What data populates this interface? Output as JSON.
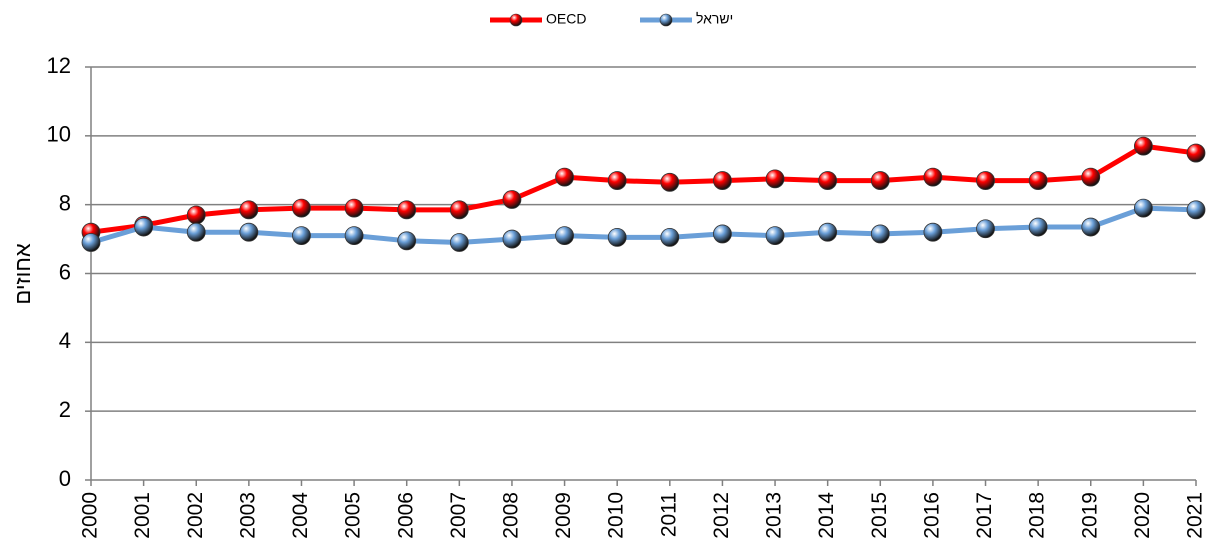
{
  "chart_data": {
    "type": "line",
    "y_label": "אחוזים",
    "x": [
      2000,
      2001,
      2002,
      2003,
      2004,
      2005,
      2006,
      2007,
      2008,
      2009,
      2010,
      2011,
      2012,
      2013,
      2014,
      2015,
      2016,
      2017,
      2018,
      2019,
      2020,
      2021
    ],
    "xlim": [
      2000,
      2021
    ],
    "ylim": [
      0,
      12
    ],
    "yticks": [
      0,
      2,
      4,
      6,
      8,
      10,
      12
    ],
    "grid": true,
    "legend": "top",
    "series": [
      {
        "name": "OECD",
        "color": "#ff0000",
        "values": [
          7.2,
          7.4,
          7.7,
          7.85,
          7.9,
          7.9,
          7.85,
          7.85,
          8.15,
          8.8,
          8.7,
          8.65,
          8.7,
          8.75,
          8.7,
          8.7,
          8.8,
          8.7,
          8.7,
          8.8,
          9.7,
          9.5
        ]
      },
      {
        "name": "ישראל",
        "color": "#6a9fd8",
        "values": [
          6.9,
          7.35,
          7.2,
          7.2,
          7.1,
          7.1,
          6.95,
          6.9,
          7.0,
          7.1,
          7.05,
          7.05,
          7.15,
          7.1,
          7.2,
          7.15,
          7.2,
          7.3,
          7.35,
          7.35,
          7.9,
          7.85
        ]
      }
    ]
  }
}
